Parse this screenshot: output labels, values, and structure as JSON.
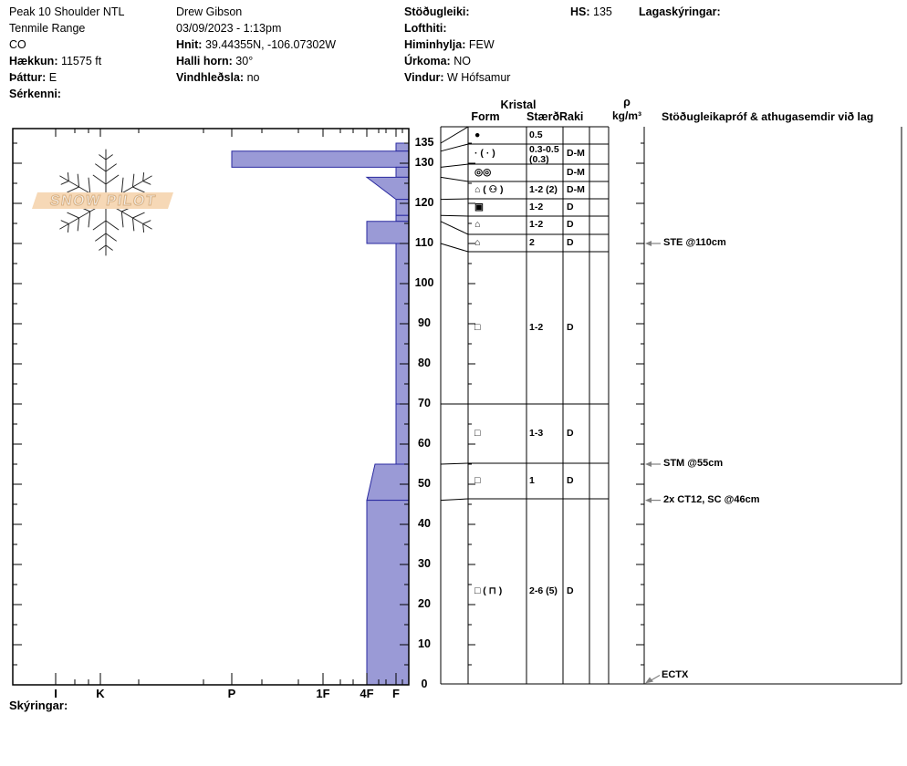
{
  "header": {
    "columns": [
      {
        "lines": [
          {
            "label": "",
            "value": "Peak 10 Shoulder NTL"
          },
          {
            "label": "",
            "value": "Tenmile Range"
          },
          {
            "label": "",
            "value": "CO"
          },
          {
            "label": "Hækkun:",
            "value": " 11575 ft"
          },
          {
            "label": "Þáttur:",
            "value": " E"
          },
          {
            "label": "Sérkenni:",
            "value": ""
          }
        ]
      },
      {
        "lines": [
          {
            "label": "",
            "value": "Drew Gibson"
          },
          {
            "label": "",
            "value": "03/09/2023 - 1:13pm"
          },
          {
            "label": "Hnit:",
            "value": " 39.44355N, -106.07302W"
          },
          {
            "label": "Halli horn:",
            "value": " 30°"
          },
          {
            "label": "Vindhleðsla:",
            "value": " no"
          }
        ]
      },
      {
        "lines": [
          {
            "label": "Stöðugleiki:",
            "value": ""
          },
          {
            "label": "Lofthiti:",
            "value": ""
          },
          {
            "label": "Himinhylja:",
            "value": " FEW"
          },
          {
            "label": "Úrkoma:",
            "value": " NO"
          },
          {
            "label": "Vindur:",
            "value": "  W Hófsamur"
          }
        ]
      },
      {
        "lines": [
          {
            "label": "HS:",
            "value": " 135"
          }
        ]
      },
      {
        "lines": [
          {
            "label": "Lagaskýringar:",
            "value": ""
          }
        ]
      }
    ]
  },
  "logo": {
    "text": "SNOW PILOT"
  },
  "table_headers": {
    "kristal": "Kristal",
    "form": "Form",
    "staerd": "Stærð",
    "raki": "Raki",
    "rho": "ρ",
    "rho_units": "kg/m³",
    "comments": "Stöðugleikapróf & athugasemdir við lag"
  },
  "footer": {
    "skyringar": "Skýringar:"
  },
  "colors": {
    "bar_fill": "#9a9ad6",
    "bar_stroke": "#2a2aa0",
    "arrow_gray": "#808080",
    "logo_band": "#f6d8b6",
    "snowflake": "#becfe0"
  },
  "chart_data": {
    "type": "snow-profile",
    "title": "Peak 10 Shoulder NTL snow pit profile",
    "hs_cm": 135,
    "depth_axis": {
      "unit": "cm",
      "min": 0,
      "max": 135,
      "tick_labels": [
        135,
        130,
        120,
        110,
        100,
        90,
        80,
        70,
        60,
        50,
        40,
        30,
        20,
        10,
        0
      ]
    },
    "hardness_axis": {
      "labels": [
        "I",
        "K",
        "P",
        "1F",
        "4F",
        "F"
      ]
    },
    "layers": [
      {
        "top_cm": 135,
        "bottom_cm": 133,
        "hardness_top": "F",
        "hardness_bottom": "F",
        "form": "●",
        "size_mm": "0.5",
        "moisture": ""
      },
      {
        "top_cm": 133,
        "bottom_cm": 129,
        "hardness_top": "P",
        "hardness_bottom": "P",
        "form": "· ( · )",
        "size_mm": "0.3-0.5 (0.3)",
        "moisture": "D-M"
      },
      {
        "top_cm": 129,
        "bottom_cm": 126.5,
        "hardness_top": "F",
        "hardness_bottom": "F",
        "form": "◎◎",
        "size_mm": "",
        "moisture": "D-M"
      },
      {
        "top_cm": 126.5,
        "bottom_cm": 121,
        "hardness_top": "4F",
        "hardness_bottom": "F",
        "form": "⌂ ( ⚇ )",
        "size_mm": "1-2 (2)",
        "moisture": "D-M"
      },
      {
        "top_cm": 121,
        "bottom_cm": 117,
        "hardness_top": "F",
        "hardness_bottom": "F",
        "form": "▣",
        "size_mm": "1-2",
        "moisture": "D"
      },
      {
        "top_cm": 117,
        "bottom_cm": 115.5,
        "hardness_top": "F",
        "hardness_bottom": "F",
        "form": "⌂",
        "size_mm": "1-2",
        "moisture": "D"
      },
      {
        "top_cm": 115.5,
        "bottom_cm": 110,
        "hardness_top": "4F",
        "hardness_bottom": "4F",
        "form": "⌂",
        "size_mm": "2",
        "moisture": "D"
      },
      {
        "top_cm": 110,
        "bottom_cm": 70,
        "hardness_top": "F",
        "hardness_bottom": "F",
        "form": "□",
        "size_mm": "1-2",
        "moisture": "D"
      },
      {
        "top_cm": 70,
        "bottom_cm": 55,
        "hardness_top": "F",
        "hardness_bottom": "F",
        "form": "□",
        "size_mm": "1-3",
        "moisture": "D"
      },
      {
        "top_cm": 55,
        "bottom_cm": 46,
        "hardness_top": "4F+",
        "hardness_bottom": "4F",
        "form": "□",
        "size_mm": "1",
        "moisture": "D"
      },
      {
        "top_cm": 46,
        "bottom_cm": 0,
        "hardness_top": "4F",
        "hardness_bottom": "4F",
        "form": "□ ( ⊓ )",
        "size_mm": "2-6 (5)",
        "moisture": "D"
      }
    ],
    "annotations": [
      {
        "text": "STE @110cm",
        "depth_cm": 110,
        "style": "left-arrow"
      },
      {
        "text": "STM @55cm",
        "depth_cm": 55,
        "style": "left-arrow"
      },
      {
        "text": "2x CT12, SC @46cm",
        "depth_cm": 46,
        "style": "left-arrow"
      },
      {
        "text": "ECTX",
        "depth_cm": 0,
        "style": "diag-arrow"
      }
    ]
  }
}
